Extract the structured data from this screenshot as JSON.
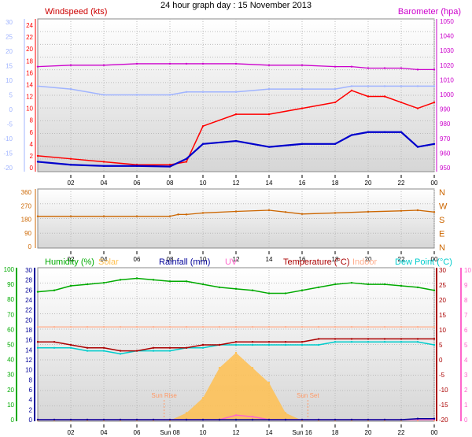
{
  "page_title": "24 hour graph day : 15 November 2013",
  "x_ticks": [
    "02",
    "04",
    "06",
    "08",
    "10",
    "12",
    "14",
    "16",
    "18",
    "20",
    "22",
    "00"
  ],
  "x_ticks_bottom": [
    "02",
    "04",
    "06",
    "Sun 08",
    "10",
    "12",
    "14",
    "Sun 16",
    "18",
    "20",
    "22",
    "00"
  ],
  "colors": {
    "wind": "#ff0000",
    "gust_avg": "#0000cc",
    "baro": "#cc00cc",
    "temp_axis": "#a0b4ff",
    "wind_dir": "#cc6600",
    "humidity": "#00aa00",
    "solar": "#ffc050",
    "rain": "#000099",
    "uv": "#ff66cc",
    "temperature": "#aa0000",
    "indoor": "#ffb090",
    "dewpoint": "#00cccc"
  },
  "chart_data": [
    {
      "type": "line",
      "labels": {
        "left": "Windspeed (kts)",
        "right": "Barometer (hpa)"
      },
      "x": [
        0,
        2,
        4,
        6,
        8,
        9,
        10,
        12,
        14,
        16,
        18,
        19,
        20,
        21,
        22,
        23,
        24
      ],
      "y_left_outer": [
        -20,
        -15,
        -10,
        -5,
        0,
        5,
        10,
        15,
        20,
        25,
        30
      ],
      "y_left_inner": [
        0,
        2,
        4,
        6,
        8,
        10,
        12,
        14,
        16,
        18,
        20,
        22,
        24
      ],
      "y_right": [
        950,
        960,
        970,
        980,
        990,
        1000,
        1010,
        1020,
        1030,
        1040,
        1050
      ],
      "series": [
        {
          "key": "wind_max",
          "values": [
            2,
            1.5,
            1,
            0.5,
            0.5,
            1,
            7,
            9,
            9,
            10,
            11,
            13,
            12,
            12,
            11,
            10,
            11
          ]
        },
        {
          "key": "wind_avg",
          "values": [
            1,
            0.5,
            0.3,
            0.3,
            0.2,
            1.5,
            4,
            4.5,
            3.5,
            4,
            4,
            5.5,
            6,
            6,
            6,
            3.5,
            4
          ]
        },
        {
          "key": "barometer",
          "values": [
            1019,
            1020,
            1020,
            1021,
            1021,
            1021,
            1021,
            1021,
            1020,
            1020,
            1019,
            1019,
            1018,
            1018,
            1018,
            1017,
            1017
          ]
        },
        {
          "key": "temperature_outer",
          "values": [
            8,
            7,
            5,
            5,
            5,
            6,
            6,
            6,
            7,
            7,
            7,
            8,
            8,
            8,
            8,
            8,
            8
          ]
        }
      ]
    },
    {
      "type": "line",
      "labels": {
        "right": [
          "N",
          "W",
          "S",
          "E",
          "N"
        ]
      },
      "y_left": [
        0,
        90,
        180,
        270,
        360
      ],
      "x": [
        0,
        2,
        4,
        6,
        8,
        8.5,
        9,
        10,
        12,
        14,
        15,
        16,
        18,
        20,
        22,
        23,
        24
      ],
      "series": [
        {
          "key": "wind_direction",
          "values": [
            200,
            200,
            200,
            200,
            200,
            212,
            212,
            222,
            232,
            240,
            228,
            215,
            222,
            230,
            236,
            240,
            228
          ]
        }
      ]
    },
    {
      "type": "line",
      "legend": [
        "Humidity (%)",
        "Solar",
        "Rainfall (mm)",
        "UV",
        "Temperature (°C)",
        "Indoor",
        "Dew Point (°C)"
      ],
      "y_left_humidity": [
        0,
        10,
        20,
        30,
        40,
        50,
        60,
        70,
        80,
        90,
        100
      ],
      "y_left_rain": [
        0,
        2,
        4,
        6,
        8,
        10,
        12,
        14,
        16,
        18,
        20,
        22,
        24,
        26,
        28,
        30
      ],
      "y_right_temp": [
        -20,
        -15,
        -10,
        -5,
        0,
        5,
        10,
        15,
        20,
        25,
        30
      ],
      "y_right_uv": [
        0,
        1,
        2,
        3,
        4,
        5,
        6,
        7,
        8,
        9,
        10
      ],
      "annotations": [
        "Sun Rise",
        "Sun Set"
      ],
      "x": [
        0,
        1,
        2,
        3,
        4,
        5,
        6,
        7,
        8,
        9,
        10,
        11,
        12,
        13,
        14,
        15,
        16,
        17,
        18,
        19,
        20,
        21,
        22,
        23,
        24
      ],
      "series": [
        {
          "key": "humidity",
          "values": [
            85,
            86,
            89,
            90,
            91,
            93,
            94,
            93,
            92,
            92,
            90,
            88,
            87,
            86,
            84,
            84,
            86,
            88,
            90,
            91,
            90,
            90,
            89,
            88,
            86
          ]
        },
        {
          "key": "temperature",
          "values": [
            6,
            6,
            5,
            4,
            4,
            3,
            3,
            4,
            4,
            4,
            5,
            5,
            6,
            6,
            6,
            6,
            6,
            7,
            7,
            7,
            7,
            7,
            7,
            7,
            7
          ]
        },
        {
          "key": "indoor",
          "values": [
            11,
            11,
            11,
            11,
            11,
            11,
            11,
            11,
            11,
            11,
            11,
            11,
            11,
            11,
            11,
            11,
            11,
            11,
            11,
            11,
            11,
            11,
            11,
            11,
            11
          ]
        },
        {
          "key": "dewpoint",
          "values": [
            4,
            4,
            4,
            3,
            3,
            2,
            3,
            3,
            3,
            4,
            4,
            5,
            5,
            5,
            5,
            5,
            5,
            5,
            6,
            6,
            6,
            6,
            6,
            6,
            5
          ]
        },
        {
          "key": "solar",
          "values": [
            0,
            0,
            0,
            0,
            0,
            0,
            0,
            0,
            0,
            0.5,
            1.5,
            3.5,
            4.5,
            3.5,
            2.5,
            0.5,
            0,
            0,
            0,
            0,
            0,
            0,
            0,
            0,
            0
          ]
        },
        {
          "key": "rain",
          "values": [
            0,
            0,
            0,
            0,
            0,
            0,
            0,
            0,
            0,
            0,
            0,
            0,
            0,
            0,
            0,
            0,
            0,
            0,
            0,
            0,
            0,
            0,
            0,
            0.2,
            0.2
          ]
        },
        {
          "key": "uv",
          "values": [
            0,
            0,
            0,
            0,
            0,
            0,
            0,
            0,
            0,
            0,
            0,
            0,
            0.3,
            0.2,
            0,
            0,
            0,
            0,
            0,
            0,
            0,
            0,
            0,
            0,
            0
          ]
        }
      ]
    }
  ]
}
